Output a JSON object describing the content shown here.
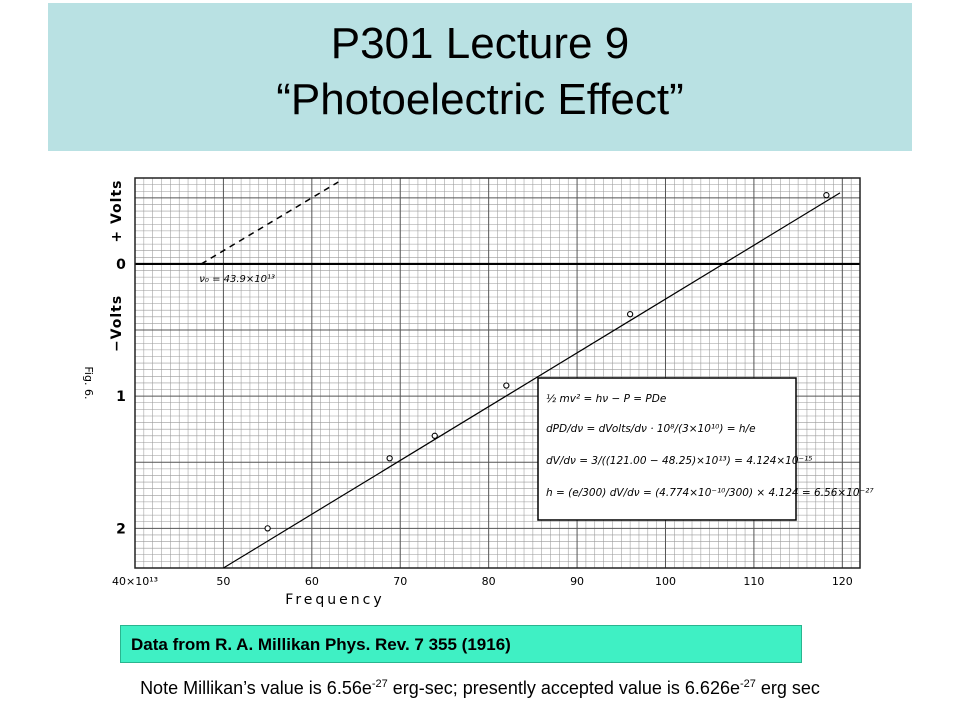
{
  "header": {
    "line1": "P301 Lecture 9",
    "line2": "“Photoelectric Effect”",
    "background": "#b9e1e3"
  },
  "chart_data": {
    "type": "scatter",
    "title": "",
    "xlabel": "Frequency",
    "ylabel_positive": "+ Volts",
    "ylabel_negative": "−Volts",
    "x_tick_labels": [
      "40×10¹³",
      "50",
      "60",
      "70",
      "80",
      "90",
      "100",
      "110",
      "120"
    ],
    "y_tick_labels": [
      "0",
      "1",
      "2"
    ],
    "x_ticks": [
      40,
      50,
      60,
      70,
      80,
      90,
      100,
      110,
      120
    ],
    "y_ticks": [
      0,
      1,
      2
    ],
    "xlim": [
      40,
      122
    ],
    "ylim": [
      -0.65,
      2.3
    ],
    "y_axis_note": "downward is more negative (stopping potential)",
    "grid": true,
    "figure_label": "Fig. 6.",
    "series": [
      {
        "name": "",
        "x": [
          55.0,
          68.8,
          73.9,
          82.0,
          96.0,
          118.2
        ],
        "values": [
          2.0,
          1.47,
          1.3,
          0.92,
          0.38,
          -0.52
        ]
      }
    ],
    "fit_line": {
      "x": [
        50.0,
        123.0
      ],
      "y": [
        2.3,
        -0.67
      ]
    },
    "dashed_line": {
      "x": [
        47.5,
        63.0
      ],
      "y": [
        0.0,
        -0.62
      ],
      "label": "ν₀ = 43.9×10¹³"
    },
    "annotation": [
      "½ mv² = hν − P = PDe",
      "dPD/dν = dVolts/dν · 10⁸/(3×10¹⁰) = h/e",
      "dV/dν = 3/((121.00 − 48.25)×10¹³) = 4.124×10⁻¹⁵",
      "h = (e/300) dV/dν = (4.774×10⁻¹⁰/300) × 4.124 = 6.56×10⁻²⁷"
    ]
  },
  "source": {
    "text": "Data from R. A. Millikan Phys. Rev. 7 355 (1916)",
    "background": "#3ff0c4"
  },
  "note": {
    "part1": "Note Millikan’s value is 6.56e",
    "exp1": "-27",
    "part2": " erg-sec; presently accepted value is 6.626e",
    "exp2": "-27",
    "part3": " erg sec"
  }
}
